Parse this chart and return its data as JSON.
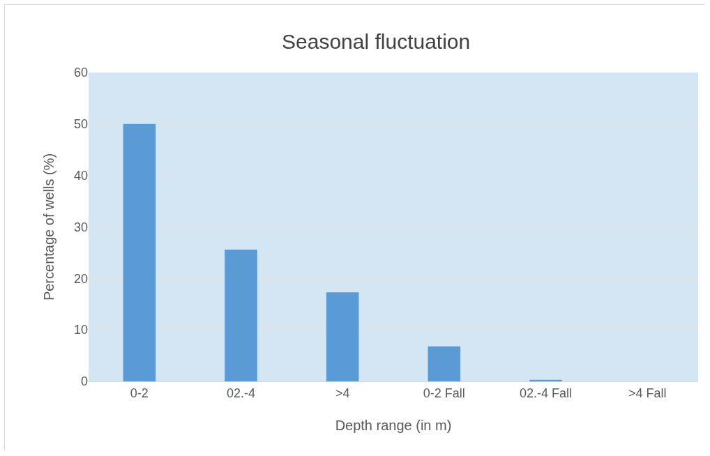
{
  "chart_data": {
    "type": "bar",
    "title": "Seasonal fluctuation",
    "xlabel": "Depth range (in m)",
    "ylabel": "Percentage of wells (%)",
    "categories": [
      "0-2",
      "02.-4",
      ">4",
      "0-2 Fall",
      "02.-4 Fall",
      ">4 Fall"
    ],
    "values": [
      50,
      25.6,
      17.3,
      6.8,
      0.3,
      0
    ],
    "color": "#5b9bd5",
    "ylim": [
      0,
      60
    ],
    "yticks": [
      0,
      10,
      20,
      30,
      40,
      50,
      60
    ],
    "grid": "y",
    "legend": false
  }
}
